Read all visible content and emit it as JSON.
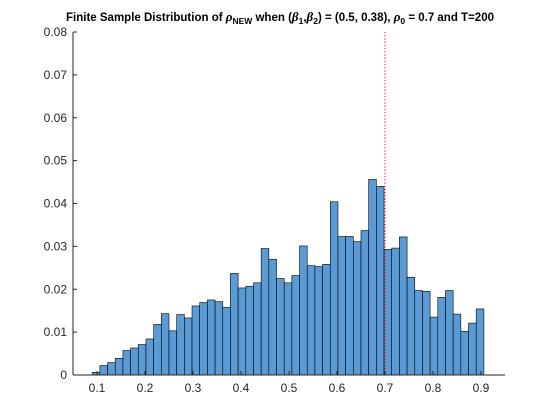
{
  "chart_data": {
    "type": "bar",
    "title": {
      "prefix": "Finite Sample Distribution of ",
      "rho": "ρ",
      "rho_sub": "NEW",
      "when": " when (",
      "beta": "β",
      "beta1_sub": "1",
      "comma": ",",
      "beta2_sub": "2",
      "betas": ") = (0.5, 0.38), ",
      "rho0_sub": "0",
      "suffix": " = 0.7 and T=200"
    },
    "xlabel": "",
    "ylabel": "",
    "bin_width": 0.016,
    "x_start": 0.09,
    "values": [
      0.0006,
      0.0022,
      0.0029,
      0.0039,
      0.0057,
      0.0063,
      0.0071,
      0.0084,
      0.0118,
      0.0143,
      0.0103,
      0.0141,
      0.0133,
      0.0161,
      0.0169,
      0.0175,
      0.0171,
      0.0158,
      0.0237,
      0.0203,
      0.0207,
      0.0215,
      0.0295,
      0.027,
      0.0225,
      0.0215,
      0.0232,
      0.0301,
      0.0255,
      0.0253,
      0.0258,
      0.0404,
      0.0323,
      0.0323,
      0.0311,
      0.0337,
      0.0456,
      0.044,
      0.0293,
      0.0296,
      0.0322,
      0.0228,
      0.0197,
      0.0195,
      0.0135,
      0.0181,
      0.0197,
      0.0142,
      0.0102,
      0.0121,
      0.0154
    ],
    "xlim": [
      0.05,
      0.95
    ],
    "ylim": [
      0,
      0.08
    ],
    "x_ticks": [
      "0.1",
      "0.2",
      "0.3",
      "0.4",
      "0.5",
      "0.6",
      "0.7",
      "0.8",
      "0.9"
    ],
    "y_ticks": [
      "0",
      "0.01",
      "0.02",
      "0.03",
      "0.04",
      "0.05",
      "0.06",
      "0.07",
      "0.08"
    ],
    "reference_line": {
      "x": 0.7,
      "style": "dotted",
      "color": "#ff0000"
    },
    "bar_color": "#5b9bd5",
    "bar_edge_color": "#000000",
    "grid": false,
    "legend": "none"
  }
}
